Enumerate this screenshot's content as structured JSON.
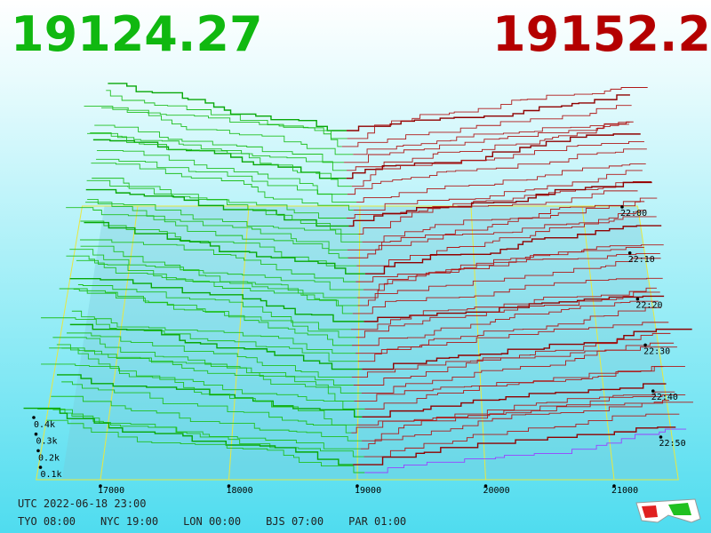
{
  "header": {
    "bid": "19124.27",
    "ask": "19152.2"
  },
  "price_axis": {
    "ticks": [
      17000,
      18000,
      19000,
      20000,
      21000
    ]
  },
  "depth_axis": {
    "ticks": [
      "0.4k",
      "0.3k",
      "0.2k",
      "0.1k"
    ]
  },
  "time_axis": {
    "ticks": [
      "22:00",
      "22:10",
      "22:20",
      "22:30",
      "22:40",
      "22:50"
    ]
  },
  "footer": {
    "utc": "UTC 2022-06-18 23:00",
    "zones": [
      "TYO 08:00",
      "NYC 19:00",
      "LON 00:00",
      "BJS 07:00",
      "PAR 01:00"
    ]
  }
}
